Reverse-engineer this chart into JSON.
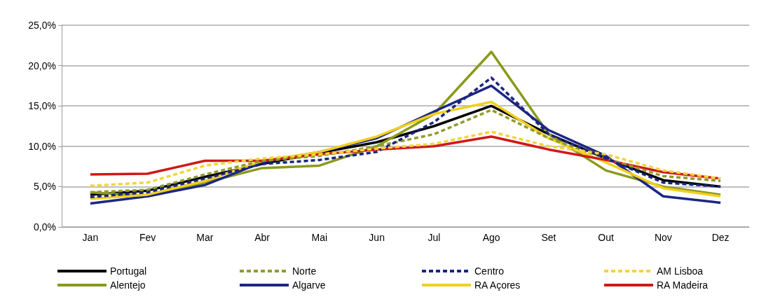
{
  "chart_data": {
    "type": "line",
    "categories": [
      "Jan",
      "Fev",
      "Mar",
      "Abr",
      "Mai",
      "Jun",
      "Jul",
      "Ago",
      "Set",
      "Out",
      "Nov",
      "Dez"
    ],
    "series": [
      {
        "name": "Portugal",
        "color": "#000000",
        "line_style": "solid",
        "values": [
          4.0,
          4.5,
          6.2,
          7.8,
          9.2,
          10.5,
          12.5,
          15.0,
          11.5,
          8.5,
          5.8,
          5.0
        ]
      },
      {
        "name": "Norte",
        "color": "#939b2c",
        "line_style": "dashed",
        "values": [
          4.3,
          4.6,
          6.5,
          8.2,
          8.8,
          10.0,
          11.5,
          14.5,
          11.0,
          8.5,
          6.3,
          5.7
        ]
      },
      {
        "name": "Centro",
        "color": "#1a2580",
        "line_style": "dashed",
        "values": [
          3.7,
          4.3,
          6.0,
          7.8,
          8.3,
          9.3,
          13.0,
          18.5,
          11.5,
          8.5,
          5.5,
          5.0
        ]
      },
      {
        "name": "AM Lisboa",
        "color": "#f4d43c",
        "line_style": "dashed",
        "values": [
          5.1,
          5.5,
          7.6,
          8.5,
          9.0,
          9.7,
          10.3,
          11.8,
          10.0,
          9.0,
          7.0,
          6.0
        ]
      },
      {
        "name": "Alentejo",
        "color": "#8a9a1c",
        "line_style": "solid",
        "values": [
          4.3,
          3.8,
          5.5,
          7.3,
          7.6,
          10.0,
          14.0,
          21.7,
          11.5,
          7.0,
          5.0,
          4.0
        ]
      },
      {
        "name": "Algarve",
        "color": "#1c2684",
        "line_style": "solid",
        "values": [
          2.9,
          3.8,
          5.2,
          8.0,
          9.3,
          11.0,
          14.3,
          17.5,
          12.0,
          8.8,
          3.8,
          3.0
        ]
      },
      {
        "name": "RA Açores",
        "color": "#f2cf1e",
        "line_style": "solid",
        "values": [
          3.5,
          4.0,
          5.7,
          8.2,
          9.3,
          11.2,
          14.0,
          15.5,
          11.0,
          8.0,
          4.8,
          3.8
        ]
      },
      {
        "name": "RA Madeira",
        "color": "#d01818",
        "line_style": "solid",
        "values": [
          6.5,
          6.6,
          8.2,
          8.2,
          9.0,
          9.6,
          10.0,
          11.2,
          9.6,
          8.3,
          6.8,
          6.0
        ]
      }
    ],
    "ylim": [
      0,
      25
    ],
    "yticks": [
      {
        "value": 0,
        "label": "0,0%"
      },
      {
        "value": 5,
        "label": "5,0%"
      },
      {
        "value": 10,
        "label": "10,0%"
      },
      {
        "value": 15,
        "label": "15,0%"
      },
      {
        "value": 20,
        "label": "20,0%"
      },
      {
        "value": 25,
        "label": "25,0%"
      }
    ],
    "grid": "y",
    "legend": "bottom",
    "marker": "none"
  }
}
